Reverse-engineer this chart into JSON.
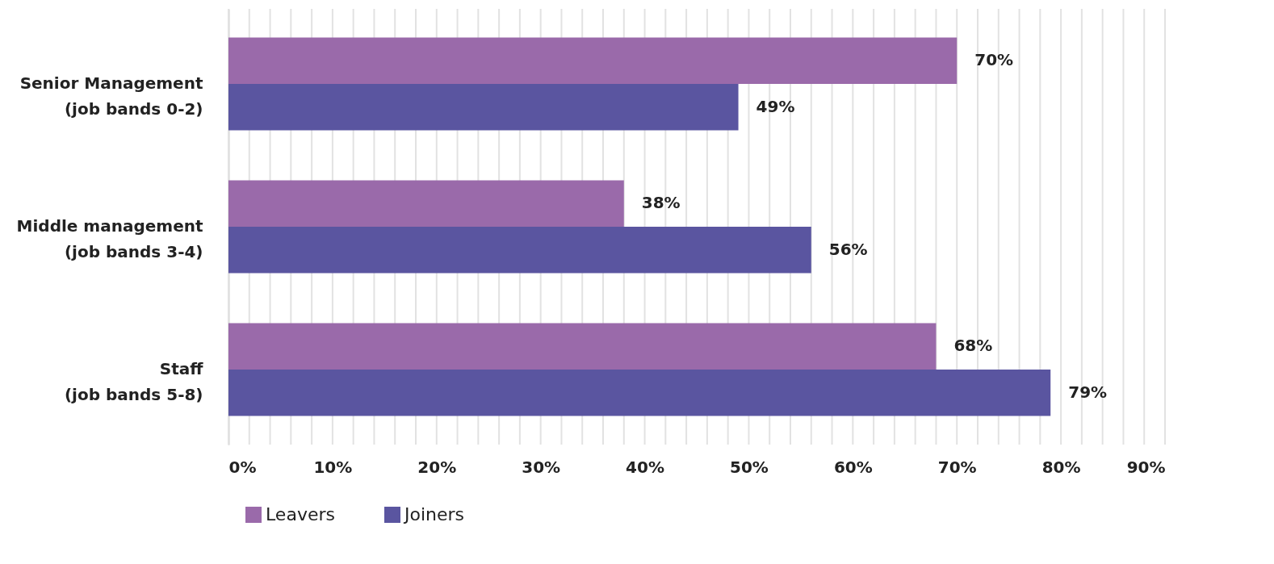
{
  "chart_data": {
    "type": "bar",
    "orientation": "horizontal",
    "categories": [
      "Senior Management\n(job bands 0-2)",
      "Middle management\n(job bands 3-4)",
      "Staff\n(job bands 5-8)"
    ],
    "series": [
      {
        "name": "Leavers",
        "color": "#9a6aaa",
        "values": [
          70,
          38,
          68
        ],
        "value_labels": [
          "70%",
          "38%",
          "68%"
        ]
      },
      {
        "name": "Joiners",
        "color": "#5a55a0",
        "values": [
          49,
          56,
          79
        ],
        "value_labels": [
          "49%",
          "56%",
          "79%"
        ]
      }
    ],
    "xlim": [
      0,
      90
    ],
    "xticks": [
      {
        "value": 0,
        "label": "0%"
      },
      {
        "value": 2,
        "label": null
      },
      {
        "value": 4,
        "label": null
      },
      {
        "value": 6,
        "label": null
      },
      {
        "value": 8,
        "label": null
      },
      {
        "value": 10,
        "label": "10%"
      },
      {
        "value": 12,
        "label": null
      },
      {
        "value": 14,
        "label": null
      },
      {
        "value": 16,
        "label": null
      },
      {
        "value": 18,
        "label": null
      },
      {
        "value": 20,
        "label": "20%"
      },
      {
        "value": 22,
        "label": null
      },
      {
        "value": 24,
        "label": null
      },
      {
        "value": 26,
        "label": null
      },
      {
        "value": 28,
        "label": null
      },
      {
        "value": 30,
        "label": "30%"
      },
      {
        "value": 32,
        "label": null
      },
      {
        "value": 34,
        "label": null
      },
      {
        "value": 36,
        "label": null
      },
      {
        "value": 38,
        "label": null
      },
      {
        "value": 40,
        "label": "40%"
      },
      {
        "value": 42,
        "label": null
      },
      {
        "value": 44,
        "label": null
      },
      {
        "value": 46,
        "label": null
      },
      {
        "value": 48,
        "label": null
      },
      {
        "value": 50,
        "label": "50%"
      },
      {
        "value": 52,
        "label": null
      },
      {
        "value": 54,
        "label": null
      },
      {
        "value": 56,
        "label": null
      },
      {
        "value": 58,
        "label": null
      },
      {
        "value": 60,
        "label": "60%"
      },
      {
        "value": 62,
        "label": null
      },
      {
        "value": 64,
        "label": null
      },
      {
        "value": 66,
        "label": null
      },
      {
        "value": 68,
        "label": null
      },
      {
        "value": 70,
        "label": "70%"
      },
      {
        "value": 72,
        "label": null
      },
      {
        "value": 74,
        "label": null
      },
      {
        "value": 76,
        "label": null
      },
      {
        "value": 78,
        "label": null
      },
      {
        "value": 80,
        "label": "80%"
      },
      {
        "value": 82,
        "label": null
      },
      {
        "value": 84,
        "label": null
      },
      {
        "value": 86,
        "label": null
      },
      {
        "value": 88,
        "label": null
      },
      {
        "value": 90,
        "label": "90%"
      }
    ],
    "grid": "x",
    "legend": "bottom"
  }
}
